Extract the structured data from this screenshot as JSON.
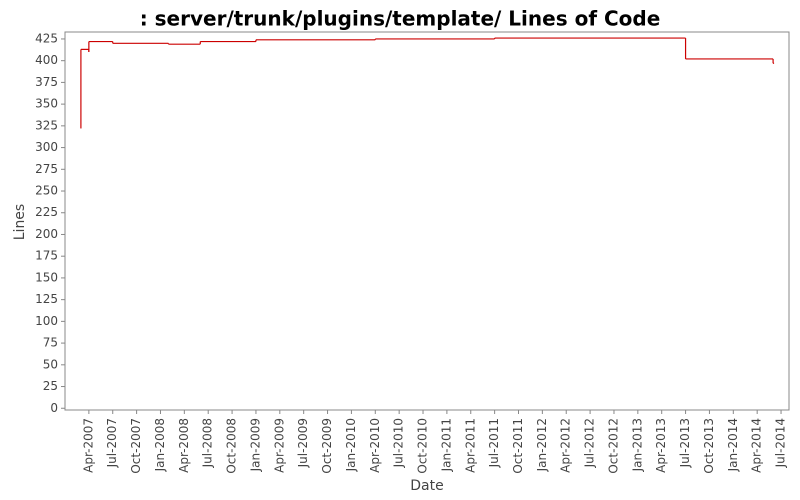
{
  "chart_data": {
    "type": "step",
    "title": ": server/trunk/plugins/template/ Lines of Code",
    "x_label": "Date",
    "y_label": "Lines",
    "color": "#cc0000",
    "x": [
      "2007-03",
      "2007-03",
      "2007-04",
      "2007-04",
      "2007-04",
      "2007-04",
      "2007-07",
      "2008-02",
      "2008-06",
      "2009-01",
      "2010-04",
      "2011-07",
      "2013-07",
      "2014-06"
    ],
    "values": [
      322,
      413,
      410,
      414,
      418,
      422,
      420,
      419,
      422,
      424,
      425,
      426,
      402,
      397
    ],
    "xlim": [
      "2007-01",
      "2014-08"
    ],
    "xticks": [
      {
        "value": "2007-04",
        "label": "Apr-2007"
      },
      {
        "value": "2007-07",
        "label": "Jul-2007"
      },
      {
        "value": "2007-10",
        "label": "Oct-2007"
      },
      {
        "value": "2008-01",
        "label": "Jan-2008"
      },
      {
        "value": "2008-04",
        "label": "Apr-2008"
      },
      {
        "value": "2008-07",
        "label": "Jul-2008"
      },
      {
        "value": "2008-10",
        "label": "Oct-2008"
      },
      {
        "value": "2009-01",
        "label": "Jan-2009"
      },
      {
        "value": "2009-04",
        "label": "Apr-2009"
      },
      {
        "value": "2009-07",
        "label": "Jul-2009"
      },
      {
        "value": "2009-10",
        "label": "Oct-2009"
      },
      {
        "value": "2010-01",
        "label": "Jan-2010"
      },
      {
        "value": "2010-04",
        "label": "Apr-2010"
      },
      {
        "value": "2010-07",
        "label": "Jul-2010"
      },
      {
        "value": "2010-10",
        "label": "Oct-2010"
      },
      {
        "value": "2011-01",
        "label": "Jan-2011"
      },
      {
        "value": "2011-04",
        "label": "Apr-2011"
      },
      {
        "value": "2011-07",
        "label": "Jul-2011"
      },
      {
        "value": "2011-10",
        "label": "Oct-2011"
      },
      {
        "value": "2012-01",
        "label": "Jan-2012"
      },
      {
        "value": "2012-04",
        "label": "Apr-2012"
      },
      {
        "value": "2012-07",
        "label": "Jul-2012"
      },
      {
        "value": "2012-10",
        "label": "Oct-2012"
      },
      {
        "value": "2013-01",
        "label": "Jan-2013"
      },
      {
        "value": "2013-04",
        "label": "Apr-2013"
      },
      {
        "value": "2013-07",
        "label": "Jul-2013"
      },
      {
        "value": "2013-10",
        "label": "Oct-2013"
      },
      {
        "value": "2014-01",
        "label": "Jan-2014"
      },
      {
        "value": "2014-04",
        "label": "Apr-2014"
      },
      {
        "value": "2014-07",
        "label": "Jul-2014"
      }
    ],
    "ylim": [
      -2,
      433
    ],
    "yticks": [
      0,
      25,
      50,
      75,
      100,
      125,
      150,
      175,
      200,
      225,
      250,
      275,
      300,
      325,
      350,
      375,
      400,
      425
    ]
  }
}
